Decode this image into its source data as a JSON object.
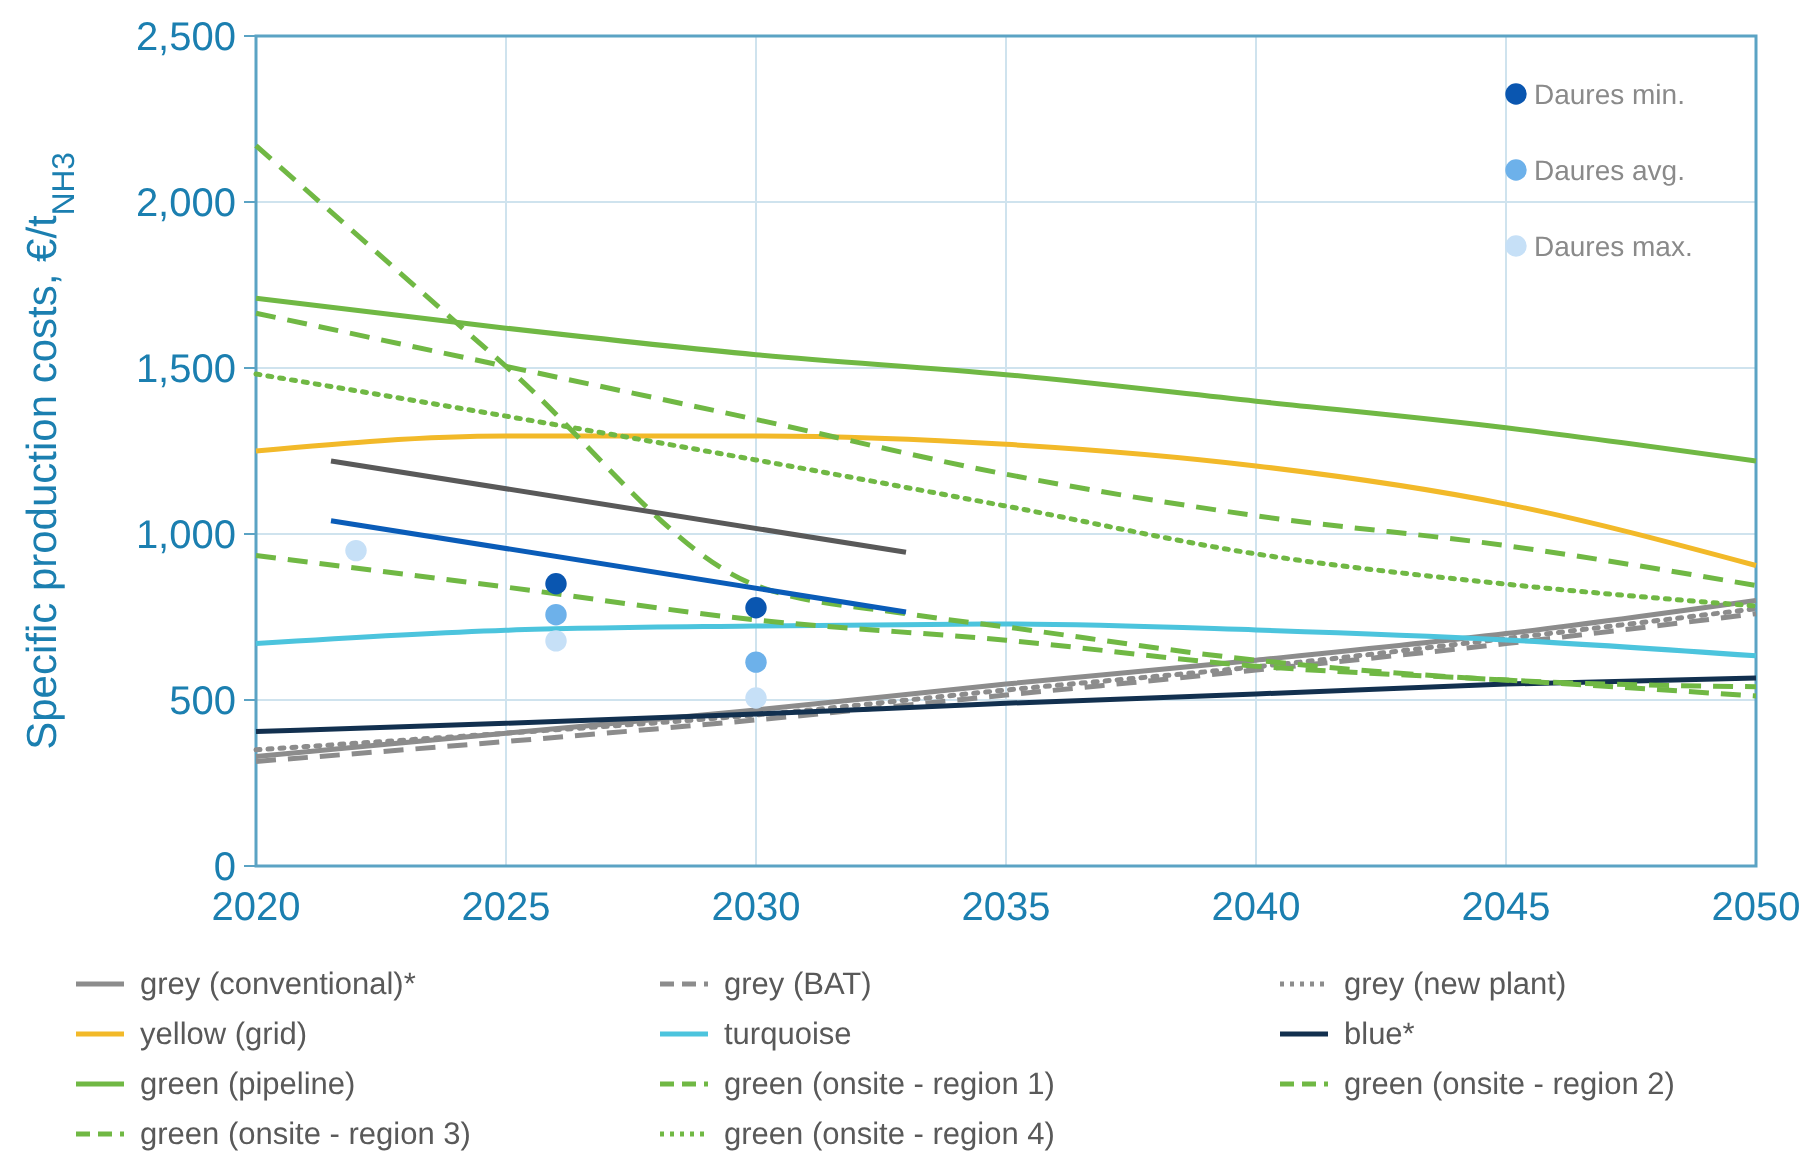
{
  "chart_data": {
    "type": "line",
    "ylabel": "Specific production costs, €/t$_{NH3}$",
    "xlim": [
      2020,
      2050
    ],
    "xticks": [
      2020,
      2025,
      2030,
      2035,
      2040,
      2045,
      2050
    ],
    "ylim": [
      0,
      2500
    ],
    "yticks": [
      0,
      500,
      {
        "value": 1000,
        "label": "1,000"
      },
      {
        "value": 1500,
        "label": "1,500"
      },
      {
        "value": 2000,
        "label": "2,000"
      },
      {
        "value": 2500,
        "label": "2,500"
      }
    ],
    "grid": true,
    "legend": "bottom",
    "series": [
      {
        "name": "grey (conventional)*",
        "color": "#8c8c8c",
        "line_style": "solid",
        "x": [
          2020,
          2025,
          2030,
          2035,
          2040,
          2045,
          2050
        ],
        "values": [
          330,
          400,
          470,
          548,
          620,
          700,
          800
        ]
      },
      {
        "name": "grey (BAT)",
        "color": "#8c8c8c",
        "line_style": "dashed",
        "x": [
          2020,
          2025,
          2030,
          2035,
          2040,
          2045,
          2050
        ],
        "values": [
          315,
          375,
          440,
          515,
          590,
          670,
          760
        ]
      },
      {
        "name": "grey (new plant)",
        "color": "#8c8c8c",
        "line_style": "dotted",
        "x": [
          2020,
          2025,
          2030,
          2035,
          2040,
          2045,
          2050
        ],
        "values": [
          350,
          400,
          455,
          530,
          600,
          685,
          775
        ]
      },
      {
        "name": "yellow (grid)",
        "color": "#f2b929",
        "line_style": "solid",
        "x": [
          2020,
          2025,
          2030,
          2035,
          2040,
          2045,
          2050
        ],
        "values": [
          1250,
          1295,
          1295,
          1270,
          1205,
          1090,
          905
        ]
      },
      {
        "name": "turquoise",
        "color": "#4cc4dd",
        "line_style": "solid",
        "x": [
          2020,
          2025,
          2030,
          2035,
          2040,
          2045,
          2050
        ],
        "values": [
          670,
          710,
          723,
          729,
          711,
          681,
          633
        ]
      },
      {
        "name": "blue*",
        "color": "#12304f",
        "line_style": "solid",
        "x": [
          2020,
          2025,
          2030,
          2035,
          2040,
          2045,
          2050
        ],
        "values": [
          405,
          430,
          458,
          490,
          518,
          548,
          566
        ]
      },
      {
        "name": "green (pipeline)",
        "color": "#70b844",
        "line_style": "solid",
        "x": [
          2020,
          2025,
          2030,
          2035,
          2040,
          2045,
          2050
        ],
        "values": [
          1710,
          1620,
          1540,
          1480,
          1400,
          1320,
          1220
        ]
      },
      {
        "name": "green (onsite - region 1)",
        "color": "#70b844",
        "line_style": "dashed",
        "x": [
          2020,
          2025,
          2030,
          2035,
          2040,
          2045,
          2050
        ],
        "values": [
          1665,
          1505,
          1345,
          1180,
          1055,
          965,
          845
        ]
      },
      {
        "name": "green (onsite - region 2)",
        "color": "#70b844",
        "line_style": "dashed",
        "x": [
          2020,
          2025,
          2030,
          2033,
          2035,
          2040,
          2045,
          2050
        ],
        "values": [
          2170,
          1505,
          845,
          760,
          720,
          620,
          560,
          540
        ]
      },
      {
        "name": "green (onsite - region 3)",
        "color": "#70b844",
        "line_style": "dashed",
        "x": [
          2020,
          2025,
          2030,
          2035,
          2040,
          2045,
          2050
        ],
        "values": [
          935,
          840,
          741,
          680,
          602,
          560,
          512
        ]
      },
      {
        "name": "green (onsite - region 4)",
        "color": "#70b844",
        "line_style": "dotted",
        "x": [
          2020,
          2025,
          2030,
          2035,
          2040,
          2045,
          2050
        ],
        "values": [
          1482,
          1355,
          1223,
          1084,
          940,
          849,
          783
        ]
      },
      {
        "color": "#595959",
        "line_style": "solid",
        "x": [
          2021.5,
          2033
        ],
        "values": [
          1220,
          945
        ]
      },
      {
        "color": "#0a5cb8",
        "line_style": "solid",
        "x": [
          2021.5,
          2033
        ],
        "values": [
          1040,
          765
        ]
      },
      {
        "name": "Daures min.",
        "type": "scatter",
        "marker": "circle",
        "color": "#0a56b0",
        "x": [
          2026,
          2030
        ],
        "values": [
          850,
          778
        ]
      },
      {
        "name": "Daures avg.",
        "type": "scatter",
        "marker": "circle",
        "color": "#6db1ea",
        "x": [
          2026,
          2030
        ],
        "values": [
          757,
          614
        ]
      },
      {
        "name": "Daures max.",
        "type": "scatter",
        "marker": "circle",
        "color": "#c6e0f7",
        "x": [
          2022,
          2026,
          2030
        ],
        "values": [
          950,
          678,
          506
        ]
      }
    ]
  }
}
